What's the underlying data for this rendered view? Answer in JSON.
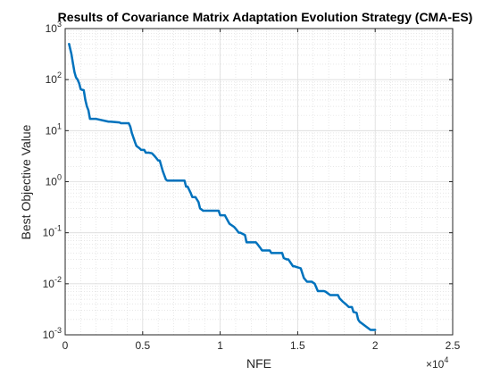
{
  "chart_data": {
    "type": "line",
    "title": "Results of Covariance Matrix Adaptation Evolution Strategy (CMA-ES)",
    "xlabel": "NFE",
    "ylabel": "Best Objective Value",
    "x_scale": "linear",
    "y_scale": "log",
    "xlim": [
      0,
      25000
    ],
    "ylim": [
      0.001,
      1000
    ],
    "x_ticks": [
      0,
      5000,
      10000,
      15000,
      20000,
      25000
    ],
    "x_tick_labels": [
      "0",
      "0.5",
      "1",
      "1.5",
      "2",
      "2.5"
    ],
    "x_multiplier_base": "×10",
    "x_multiplier_exp": "4",
    "y_ticks": [
      0.001,
      0.01,
      0.1,
      1,
      10,
      100,
      1000
    ],
    "y_tick_bases": [
      "10",
      "10",
      "10",
      "10",
      "10",
      "10",
      "10"
    ],
    "y_tick_exps": [
      "-3",
      "-2",
      "-1",
      "0",
      "1",
      "2",
      "3"
    ],
    "grid": true,
    "minor_grid": true,
    "line_color": "#0072BD",
    "series": [
      {
        "x": [
          250,
          300,
          400,
          500,
          600,
          700,
          800,
          900,
          1000,
          1100,
          1200,
          1300,
          1400,
          1500,
          1600,
          1700,
          1800,
          1900,
          2000,
          2800,
          2900,
          3500,
          3600,
          4100,
          4200,
          4300,
          4500,
          4600,
          4800,
          4900,
          5100,
          5200,
          5400,
          5600,
          5800,
          6000,
          6100,
          6300,
          6500,
          6600,
          7100,
          7200,
          7600,
          7700,
          7800,
          7900,
          8100,
          8200,
          8400,
          8600,
          8700,
          8900,
          9000,
          9100,
          9900,
          10000,
          10300,
          10500,
          10600,
          10900,
          11000,
          11200,
          11300,
          11600,
          11700,
          12300,
          12400,
          12600,
          12700,
          13200,
          13300,
          14000,
          14100,
          14300,
          14400,
          14700,
          14800,
          15200,
          15400,
          15600,
          15900,
          16100,
          16300,
          16700,
          16800,
          17100,
          17300,
          17600,
          17700,
          17900,
          18100,
          18300,
          18500,
          18600,
          18800,
          18900,
          19000,
          19700,
          20000
        ],
        "y": [
          500,
          430,
          320,
          210,
          140,
          110,
          100,
          85,
          65,
          63,
          62,
          40,
          30,
          25,
          17,
          17,
          17,
          17,
          17,
          15,
          15,
          14.5,
          14,
          14,
          12,
          9,
          6,
          5,
          4.5,
          4.2,
          4.2,
          3.7,
          3.7,
          3.6,
          3.1,
          2.6,
          2.6,
          1.6,
          1.1,
          1.05,
          1.05,
          1.05,
          1.05,
          1.05,
          0.8,
          0.8,
          0.6,
          0.5,
          0.5,
          0.4,
          0.3,
          0.27,
          0.27,
          0.27,
          0.27,
          0.22,
          0.22,
          0.17,
          0.15,
          0.13,
          0.12,
          0.1,
          0.1,
          0.09,
          0.065,
          0.065,
          0.06,
          0.05,
          0.045,
          0.045,
          0.04,
          0.04,
          0.032,
          0.03,
          0.03,
          0.022,
          0.022,
          0.02,
          0.013,
          0.011,
          0.011,
          0.01,
          0.0072,
          0.0072,
          0.007,
          0.006,
          0.006,
          0.006,
          0.0052,
          0.0045,
          0.004,
          0.0035,
          0.0035,
          0.0028,
          0.0027,
          0.002,
          0.0018,
          0.00125,
          0.00125
        ]
      }
    ]
  }
}
